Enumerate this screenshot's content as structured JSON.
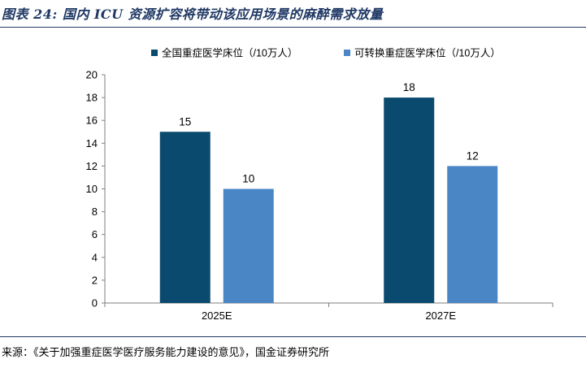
{
  "figure": {
    "title": "图表 24: 国内 ICU 资源扩容将带动该应用场景的麻醉需求放量",
    "source": "来源：《关于加强重症医学医疗服务能力建设的意见》，国金证券研究所"
  },
  "colors": {
    "series_1": "#0b4a6f",
    "series_2": "#4a86c5",
    "rule": "#1f3864",
    "axis": "#7f7f7f"
  },
  "chart_data": {
    "type": "bar",
    "categories": [
      "2025E",
      "2027E"
    ],
    "series": [
      {
        "name": "全国重症医学床位（/10万人）",
        "values": [
          15,
          18
        ]
      },
      {
        "name": "可转换重症医学床位（/10万人）",
        "values": [
          10,
          12
        ]
      }
    ],
    "ylim": [
      0,
      20
    ],
    "yticks": [
      "0",
      "2",
      "4",
      "6",
      "8",
      "10",
      "12",
      "14",
      "16",
      "18",
      "20"
    ],
    "data_labels": true,
    "grid": false,
    "legend": "top"
  }
}
